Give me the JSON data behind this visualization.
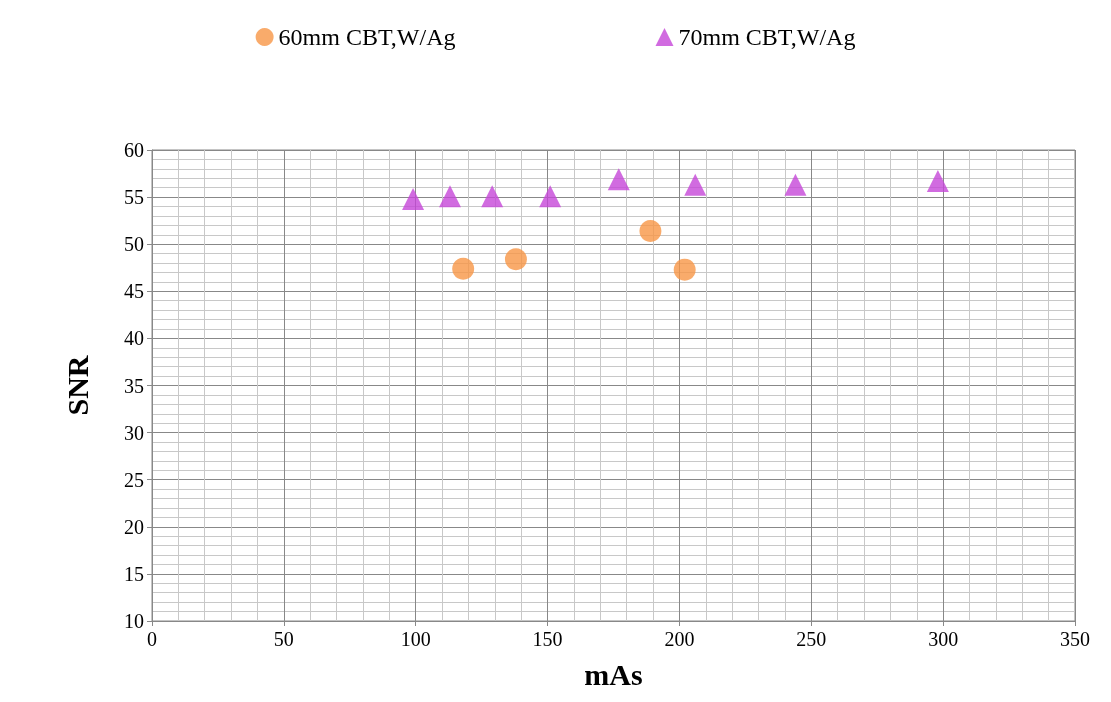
{
  "chart_data": {
    "type": "scatter",
    "xlabel": "mAs",
    "ylabel": "SNR",
    "series": [
      {
        "name": "60mm CBT,W/Ag",
        "color": "#f79646",
        "marker": "circle",
        "x": [
          118,
          138,
          189,
          202
        ],
        "values": [
          47.4,
          48.4,
          51.4,
          47.3
        ]
      },
      {
        "name": "70mm CBT,W/Ag",
        "color": "#c646d8",
        "marker": "triangle",
        "x": [
          99,
          113,
          129,
          151,
          177,
          206,
          244,
          298
        ],
        "values": [
          54.8,
          55.1,
          55.1,
          55.1,
          56.9,
          56.3,
          56.3,
          56.7
        ]
      }
    ],
    "xlim": [
      0,
      350
    ],
    "xticks": [
      0,
      50,
      100,
      150,
      200,
      250,
      300,
      350
    ],
    "ylim": [
      10,
      60
    ],
    "yticks": [
      10,
      15,
      20,
      25,
      30,
      35,
      40,
      45,
      50,
      55,
      60
    ],
    "grid": true,
    "legend": "top"
  }
}
